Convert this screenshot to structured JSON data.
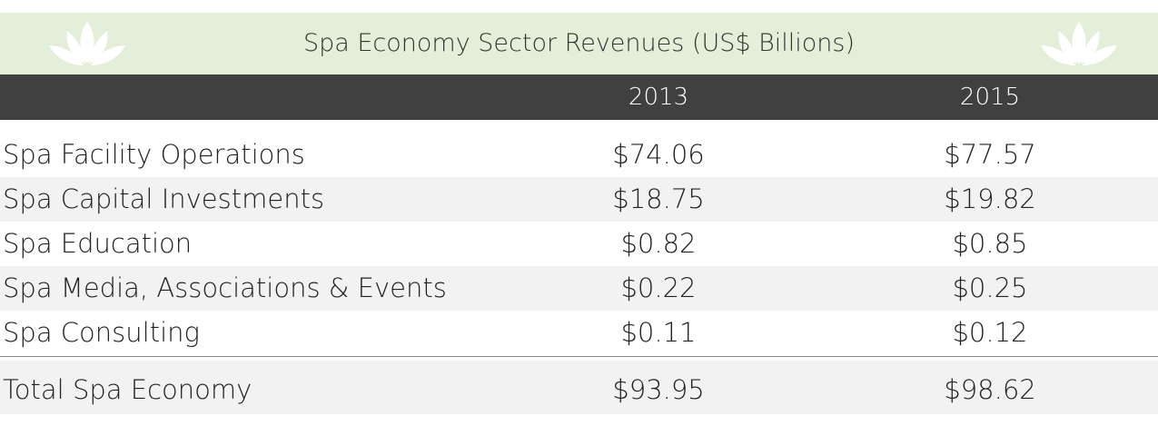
{
  "header": {
    "title": "Spa Economy Sector Revenues (US$ Billions)"
  },
  "table": {
    "columns": [
      "2013",
      "2015"
    ],
    "rows": [
      {
        "label": "Spa Facility Operations",
        "values": [
          "$74.06",
          "$77.57"
        ]
      },
      {
        "label": "Spa Capital Investments",
        "values": [
          "$18.75",
          "$19.82"
        ]
      },
      {
        "label": "Spa Education",
        "values": [
          "$0.82",
          "$0.85"
        ]
      },
      {
        "label": "Spa Media, Associations & Events",
        "values": [
          "$0.22",
          "$0.25"
        ]
      },
      {
        "label": "Spa Consulting",
        "values": [
          "$0.11",
          "$0.12"
        ]
      }
    ],
    "total": {
      "label": "Total Spa Economy",
      "values": [
        "$93.95",
        "$98.62"
      ]
    }
  }
}
